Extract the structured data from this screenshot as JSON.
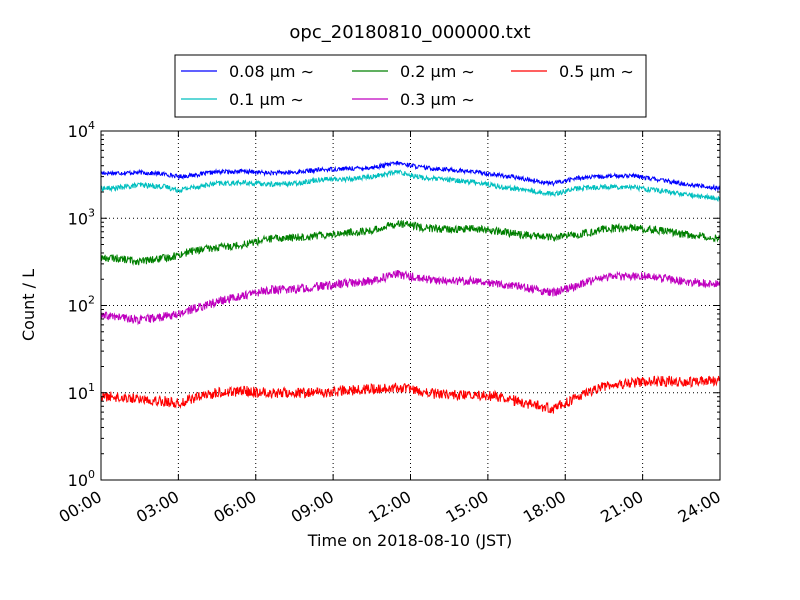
{
  "chart_data": {
    "type": "line",
    "title": "opc_20180810_000000.txt",
    "xlabel": "Time on 2018-08-10 (JST)",
    "ylabel": "Count / L",
    "y_scale": "log",
    "ylim": [
      1,
      10000
    ],
    "xlim": [
      "2018-08-10 00:00",
      "2018-08-11 00:00"
    ],
    "x_tick_labels": [
      "00:00",
      "03:00",
      "06:00",
      "09:00",
      "12:00",
      "15:00",
      "18:00",
      "21:00",
      "24:00"
    ],
    "y_tick_labels": [
      {
        "base": "10",
        "exp": "0"
      },
      {
        "base": "10",
        "exp": "1"
      },
      {
        "base": "10",
        "exp": "2"
      },
      {
        "base": "10",
        "exp": "3"
      },
      {
        "base": "10",
        "exp": "4"
      }
    ],
    "grid": true,
    "legend_position": "top-center",
    "x_hours": [
      0.5,
      1.5,
      2.5,
      3,
      3.5,
      4.5,
      5.5,
      6.5,
      7.5,
      8.5,
      9.5,
      10.5,
      11.5,
      12.5,
      13.5,
      14.5,
      15.5,
      16.5,
      17.5,
      18.5,
      19.5,
      20.5,
      21.5,
      22.5,
      23.5,
      24
    ],
    "series": [
      {
        "name": "0.08 μm ∼",
        "color": "#0000ff",
        "values": [
          3300,
          3350,
          3200,
          3000,
          3100,
          3400,
          3450,
          3300,
          3350,
          3600,
          3700,
          3800,
          4300,
          3800,
          3600,
          3400,
          3100,
          2800,
          2500,
          2900,
          3000,
          3100,
          2800,
          2500,
          2300,
          2200
        ]
      },
      {
        "name": "0.1 μm ∼",
        "color": "#00bfbf",
        "values": [
          2200,
          2400,
          2300,
          2100,
          2250,
          2500,
          2550,
          2450,
          2500,
          2800,
          2800,
          3000,
          3400,
          2900,
          2750,
          2600,
          2300,
          2100,
          1900,
          2200,
          2300,
          2300,
          2100,
          1900,
          1750,
          1650
        ]
      },
      {
        "name": "0.2 μm ∼",
        "color": "#008000",
        "values": [
          350,
          320,
          350,
          380,
          420,
          460,
          500,
          580,
          600,
          640,
          680,
          720,
          880,
          780,
          740,
          760,
          700,
          640,
          600,
          650,
          750,
          780,
          740,
          660,
          620,
          600
        ]
      },
      {
        "name": "0.3 μm ∼",
        "color": "#bf00bf",
        "values": [
          75,
          68,
          75,
          80,
          90,
          110,
          130,
          150,
          155,
          165,
          180,
          190,
          230,
          200,
          190,
          195,
          175,
          160,
          140,
          170,
          210,
          220,
          210,
          190,
          180,
          175
        ]
      },
      {
        "name": "0.5 μm ∼",
        "color": "#ff0000",
        "values": [
          9,
          8.5,
          8,
          7.5,
          8.5,
          10,
          10.5,
          10,
          10,
          10,
          10.5,
          11,
          11.5,
          10,
          9.5,
          9.5,
          9,
          7.5,
          6.5,
          9,
          12,
          13,
          13.5,
          13.5,
          13.5,
          14
        ]
      }
    ]
  }
}
